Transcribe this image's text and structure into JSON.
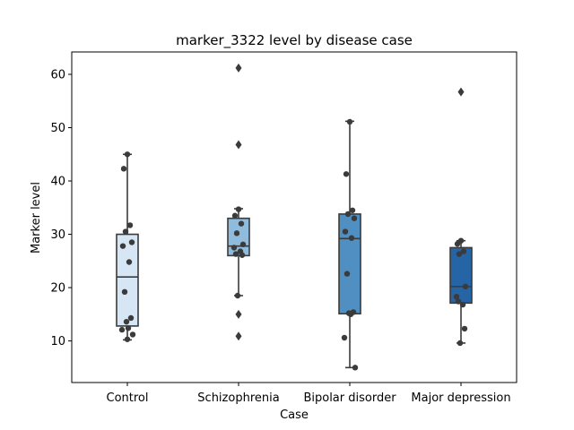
{
  "chart_data": {
    "type": "box",
    "title": "marker_3322 level by disease case",
    "xlabel": "Case",
    "ylabel": "Marker level",
    "ylim": [
      2.2,
      64.2
    ],
    "yticks": [
      10,
      20,
      30,
      40,
      50,
      60
    ],
    "grid": false,
    "categories": [
      "Control",
      "Schizophrenia",
      "Bipolar disorder",
      "Major depression"
    ],
    "colors": [
      "#d6e6f4",
      "#8fbcdc",
      "#4f8fc1",
      "#2565a6"
    ],
    "boxes": [
      {
        "q1": 12.8,
        "median": 22.0,
        "q3": 30.0,
        "whisker_low": 10.2,
        "whisker_high": 45.0,
        "outliers": []
      },
      {
        "q1": 26.0,
        "median": 27.8,
        "q3": 33.0,
        "whisker_low": 18.5,
        "whisker_high": 34.8,
        "outliers": [
          61.2,
          46.8,
          15.0,
          10.9
        ]
      },
      {
        "q1": 15.1,
        "median": 29.2,
        "q3": 33.8,
        "whisker_low": 5.0,
        "whisker_high": 51.2,
        "outliers": []
      },
      {
        "q1": 17.1,
        "median": 20.2,
        "q3": 27.5,
        "whisker_low": 9.6,
        "whisker_high": 28.8,
        "outliers": [
          56.7
        ]
      }
    ],
    "points": [
      [
        45.0,
        42.3,
        31.7,
        30.5,
        28.5,
        27.8,
        24.8,
        19.2,
        14.3,
        13.6,
        12.4,
        12.1,
        11.2,
        10.3
      ],
      [
        34.7,
        33.5,
        32.0,
        30.2,
        28.1,
        27.5,
        26.8,
        26.3,
        26.1,
        18.5
      ],
      [
        51.1,
        41.3,
        34.5,
        33.8,
        33.0,
        30.5,
        29.3,
        22.6,
        15.4,
        15.2,
        15.0,
        10.6,
        5.0
      ],
      [
        28.8,
        28.2,
        26.8,
        26.3,
        20.2,
        18.3,
        16.8,
        17.4,
        12.3,
        9.6
      ]
    ]
  }
}
